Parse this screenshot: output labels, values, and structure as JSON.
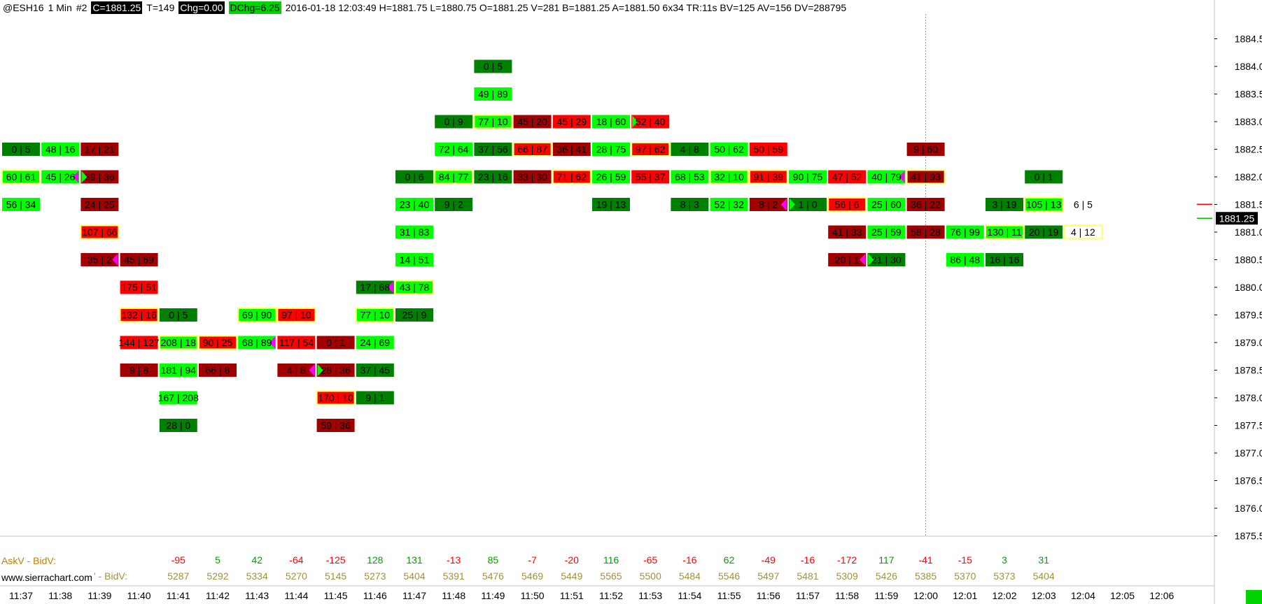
{
  "header": {
    "symbol": "@ESH16",
    "interval": "1 Min",
    "chart_num": "#2",
    "close": "C=1881.25",
    "trades": "T=149",
    "chg": "Chg=0.00",
    "dchg": "DChg=6.25",
    "info": "2016-01-18 12:03:49 H=1881.75 L=1880.75 O=1881.25 V=281 B=1881.25 A=1881.50 6x34 TR:11s BV=125 AV=156 DV=288795"
  },
  "footer": {
    "row1_label": "AskV - BidV:",
    "row2_label": "' - BidV:",
    "watermark": "www.sierrachart.com"
  },
  "colors": {
    "bright": "#00ff00",
    "green": "#008000",
    "red": "#ff0000",
    "maroon": "#a00000",
    "pos_text": "#00a000",
    "neg_text": "#ff0000",
    "sum_text": "#a09040",
    "yellow": "#ffff66",
    "magenta": "#ff00ff"
  },
  "chart_data": {
    "type": "table",
    "price_axis": [
      "1884.50",
      "1884.00",
      "1883.50",
      "1883.00",
      "1882.50",
      "1882.00",
      "1881.50",
      "1881.00",
      "1880.50",
      "1880.00",
      "1879.50",
      "1879.00",
      "1878.50",
      "1878.00",
      "1877.50",
      "1877.00",
      "1876.50",
      "1876.00",
      "1875.50"
    ],
    "last_price": "1881.25",
    "times": [
      "11:37",
      "11:38",
      "11:39",
      "11:40",
      "11:41",
      "11:42",
      "11:43",
      "11:44",
      "11:45",
      "11:46",
      "11:47",
      "11:48",
      "11:49",
      "11:50",
      "11:51",
      "11:52",
      "11:53",
      "11:54",
      "11:55",
      "11:56",
      "11:57",
      "11:58",
      "11:59",
      "12:00",
      "12:01",
      "12:02",
      "12:03",
      "12:04",
      "12:05",
      "12:06"
    ],
    "delta": [
      "-95",
      "5",
      "42",
      "-64",
      "-125",
      "128",
      "131",
      "-13",
      "85",
      "-7",
      "-20",
      "116",
      "-65",
      "-16",
      "62",
      "-49",
      "-16",
      "-172",
      "117",
      "-41",
      "-15",
      "3",
      "31"
    ],
    "bidv": [
      "5287",
      "5292",
      "5334",
      "5270",
      "5145",
      "5273",
      "5404",
      "5391",
      "5476",
      "5469",
      "5449",
      "5565",
      "5500",
      "5484",
      "5546",
      "5497",
      "5481",
      "5309",
      "5426",
      "5385",
      "5370",
      "5373",
      "5404"
    ],
    "bars": [
      {
        "time": "11:37",
        "cells": [
          {
            "price": 1882.5,
            "text": "0 | 5",
            "fill": "green"
          },
          {
            "price": 1882.0,
            "text": "60 | 61",
            "fill": "bright",
            "box": true
          },
          {
            "price": 1881.5,
            "text": "56 | 34",
            "fill": "bright"
          }
        ]
      },
      {
        "time": "11:38",
        "cells": [
          {
            "price": 1882.5,
            "text": "48 | 16",
            "fill": "bright"
          },
          {
            "price": 1882.0,
            "text": "45 | 26",
            "fill": "bright",
            "mark": "magenta"
          }
        ]
      },
      {
        "time": "11:39",
        "cells": [
          {
            "price": 1882.5,
            "text": "17 | 21",
            "fill": "maroon"
          },
          {
            "price": 1882.0,
            "text": "39 | 36",
            "fill": "maroon",
            "mark": "green-left"
          },
          {
            "price": 1881.5,
            "text": "24 | 25",
            "fill": "maroon"
          },
          {
            "price": 1881.0,
            "text": "107 | 66",
            "fill": "red",
            "box": true
          },
          {
            "price": 1880.5,
            "text": "35 | 2",
            "fill": "maroon",
            "mark": "magenta"
          }
        ]
      },
      {
        "time": "11:40",
        "cells": [
          {
            "price": 1880.5,
            "text": "45 | 69",
            "fill": "maroon"
          },
          {
            "price": 1880.0,
            "text": "175 | 51",
            "fill": "red"
          },
          {
            "price": 1879.5,
            "text": "132 | 16",
            "fill": "red",
            "box": true
          },
          {
            "price": 1879.0,
            "text": "144 | 127",
            "fill": "red"
          },
          {
            "price": 1878.5,
            "text": "9 | 8",
            "fill": "maroon"
          }
        ]
      },
      {
        "time": "11:41",
        "cells": [
          {
            "price": 1879.5,
            "text": "0 | 5",
            "fill": "green"
          },
          {
            "price": 1879.0,
            "text": "208 | 18",
            "fill": "bright",
            "box": true
          },
          {
            "price": 1878.5,
            "text": "181 | 94",
            "fill": "bright"
          },
          {
            "price": 1878.0,
            "text": "167 | 208",
            "fill": "bright"
          },
          {
            "price": 1877.5,
            "text": "28 | 0",
            "fill": "green"
          }
        ]
      },
      {
        "time": "11:42",
        "cells": [
          {
            "price": 1879.0,
            "text": "90 | 25",
            "fill": "red",
            "box": true
          },
          {
            "price": 1878.5,
            "text": "66 | 8",
            "fill": "maroon"
          }
        ]
      },
      {
        "time": "11:43",
        "cells": [
          {
            "price": 1879.5,
            "text": "69 | 90",
            "fill": "bright",
            "box": true
          },
          {
            "price": 1879.0,
            "text": "68 | 89",
            "fill": "bright",
            "mark": "magenta"
          }
        ]
      },
      {
        "time": "11:44",
        "cells": [
          {
            "price": 1879.5,
            "text": "97 | 10",
            "fill": "red",
            "box": true
          },
          {
            "price": 1879.0,
            "text": "117 | 54",
            "fill": "red"
          },
          {
            "price": 1878.5,
            "text": "4 | 8",
            "fill": "maroon",
            "mark": "magenta"
          }
        ]
      },
      {
        "time": "11:45",
        "cells": [
          {
            "price": 1879.0,
            "text": "0 | 1",
            "fill": "maroon"
          },
          {
            "price": 1878.5,
            "text": "28 | 36",
            "fill": "maroon",
            "mark": "green-left"
          },
          {
            "price": 1878.0,
            "text": "170 | 10",
            "fill": "red",
            "box": true
          },
          {
            "price": 1877.5,
            "text": "59 | 36",
            "fill": "maroon"
          }
        ]
      },
      {
        "time": "11:46",
        "cells": [
          {
            "price": 1880.0,
            "text": "17 | 68",
            "fill": "green",
            "mark": "magenta"
          },
          {
            "price": 1879.5,
            "text": "77 | 10",
            "fill": "bright",
            "box": true
          },
          {
            "price": 1879.0,
            "text": "24 | 69",
            "fill": "bright"
          },
          {
            "price": 1878.5,
            "text": "37 | 45",
            "fill": "green"
          },
          {
            "price": 1878.0,
            "text": "9 | 1",
            "fill": "green"
          }
        ]
      },
      {
        "time": "11:47",
        "cells": [
          {
            "price": 1882.0,
            "text": "0 | 6",
            "fill": "green"
          },
          {
            "price": 1881.5,
            "text": "23 | 40",
            "fill": "bright"
          },
          {
            "price": 1881.0,
            "text": "31 | 83",
            "fill": "bright"
          },
          {
            "price": 1880.5,
            "text": "14 | 51",
            "fill": "bright"
          },
          {
            "price": 1880.0,
            "text": "43 | 78",
            "fill": "bright",
            "box": true
          },
          {
            "price": 1879.5,
            "text": "25 | 9",
            "fill": "green"
          }
        ]
      },
      {
        "time": "11:48",
        "cells": [
          {
            "price": 1883.0,
            "text": "0 | 9",
            "fill": "green"
          },
          {
            "price": 1882.5,
            "text": "72 | 64",
            "fill": "bright"
          },
          {
            "price": 1882.0,
            "text": "84 | 77",
            "fill": "bright",
            "box": true
          },
          {
            "price": 1881.5,
            "text": "9 | 2",
            "fill": "green"
          }
        ]
      },
      {
        "time": "11:49",
        "cells": [
          {
            "price": 1884.0,
            "text": "0 | 5",
            "fill": "green"
          },
          {
            "price": 1883.5,
            "text": "49 | 89",
            "fill": "bright"
          },
          {
            "price": 1883.0,
            "text": "77 | 10",
            "fill": "bright",
            "box": true
          },
          {
            "price": 1882.5,
            "text": "37 | 56",
            "fill": "green"
          },
          {
            "price": 1882.0,
            "text": "23 | 16",
            "fill": "green"
          }
        ]
      },
      {
        "time": "11:50",
        "cells": [
          {
            "price": 1883.0,
            "text": "45 | 20",
            "fill": "maroon"
          },
          {
            "price": 1882.5,
            "text": "66 | 87",
            "fill": "red",
            "box": true
          },
          {
            "price": 1882.0,
            "text": "33 | 30",
            "fill": "maroon"
          }
        ]
      },
      {
        "time": "11:51",
        "cells": [
          {
            "price": 1883.0,
            "text": "45 | 29",
            "fill": "red"
          },
          {
            "price": 1882.5,
            "text": "36 | 41",
            "fill": "maroon"
          },
          {
            "price": 1882.0,
            "text": "71 | 62",
            "fill": "red",
            "box": true
          }
        ]
      },
      {
        "time": "11:52",
        "cells": [
          {
            "price": 1883.0,
            "text": "18 | 60",
            "fill": "bright"
          },
          {
            "price": 1882.5,
            "text": "28 | 75",
            "fill": "bright"
          },
          {
            "price": 1882.0,
            "text": "26 | 59",
            "fill": "bright",
            "mark": "green-left"
          },
          {
            "price": 1881.5,
            "text": "19 | 13",
            "fill": "green"
          }
        ]
      },
      {
        "time": "11:53",
        "cells": [
          {
            "price": 1883.0,
            "text": "52 | 40",
            "fill": "red",
            "mark": "green-left"
          },
          {
            "price": 1882.5,
            "text": "97 | 62",
            "fill": "red",
            "box": true
          },
          {
            "price": 1882.0,
            "text": "55 | 37",
            "fill": "red"
          }
        ]
      },
      {
        "time": "11:54",
        "cells": [
          {
            "price": 1882.5,
            "text": "4 | 8",
            "fill": "green"
          },
          {
            "price": 1882.0,
            "text": "68 | 53",
            "fill": "bright"
          },
          {
            "price": 1881.5,
            "text": "8 | 3",
            "fill": "green"
          }
        ]
      },
      {
        "time": "11:55",
        "cells": [
          {
            "price": 1882.5,
            "text": "50 | 62",
            "fill": "bright"
          },
          {
            "price": 1882.0,
            "text": "32 | 10",
            "fill": "bright",
            "box": true
          },
          {
            "price": 1881.5,
            "text": "52 | 32",
            "fill": "bright"
          }
        ]
      },
      {
        "time": "11:56",
        "cells": [
          {
            "price": 1882.5,
            "text": "50 | 59",
            "fill": "red"
          },
          {
            "price": 1882.0,
            "text": "91 | 39",
            "fill": "red",
            "box": true
          },
          {
            "price": 1881.5,
            "text": "8 | 2",
            "fill": "maroon",
            "mark": "magenta"
          }
        ]
      },
      {
        "time": "11:57",
        "cells": [
          {
            "price": 1882.0,
            "text": "90 | 75",
            "fill": "bright"
          },
          {
            "price": 1881.5,
            "text": "1 | 0",
            "fill": "green",
            "mark": "green-left"
          }
        ]
      },
      {
        "time": "11:58",
        "cells": [
          {
            "price": 1882.0,
            "text": "47 | 52",
            "fill": "red"
          },
          {
            "price": 1881.5,
            "text": "56 | 6",
            "fill": "red",
            "box": true
          },
          {
            "price": 1881.0,
            "text": "41 | 33",
            "fill": "maroon"
          },
          {
            "price": 1880.5,
            "text": "20 | 1",
            "fill": "maroon",
            "mark": "magenta"
          }
        ]
      },
      {
        "time": "11:59",
        "cells": [
          {
            "price": 1882.0,
            "text": "40 | 79",
            "fill": "bright",
            "mark": "magenta"
          },
          {
            "price": 1881.5,
            "text": "25 | 60",
            "fill": "bright"
          },
          {
            "price": 1881.0,
            "text": "25 | 59",
            "fill": "bright"
          },
          {
            "price": 1880.5,
            "text": "21 | 30",
            "fill": "green",
            "mark": "green-left"
          }
        ]
      },
      {
        "time": "12:00",
        "cells": [
          {
            "price": 1882.5,
            "text": "9 | 60",
            "fill": "maroon"
          },
          {
            "price": 1882.0,
            "text": "41 | 93",
            "fill": "maroon",
            "box": true
          },
          {
            "price": 1881.5,
            "text": "36 | 22",
            "fill": "maroon"
          },
          {
            "price": 1881.0,
            "text": "58 | 28",
            "fill": "maroon"
          }
        ]
      },
      {
        "time": "12:01",
        "cells": [
          {
            "price": 1881.0,
            "text": "76 | 99",
            "fill": "bright"
          },
          {
            "price": 1880.5,
            "text": "86 | 48",
            "fill": "bright"
          }
        ]
      },
      {
        "time": "12:02",
        "cells": [
          {
            "price": 1881.5,
            "text": "3 | 19",
            "fill": "green"
          },
          {
            "price": 1881.0,
            "text": "130 | 11",
            "fill": "bright",
            "box": true
          },
          {
            "price": 1880.5,
            "text": "16 | 16",
            "fill": "green"
          }
        ]
      },
      {
        "time": "12:03",
        "cells": [
          {
            "price": 1882.0,
            "text": "0 | 1",
            "fill": "green"
          },
          {
            "price": 1881.5,
            "text": "105 | 13",
            "fill": "bright",
            "box": true
          },
          {
            "price": 1881.0,
            "text": "20 | 19",
            "fill": "green"
          }
        ]
      },
      {
        "time": "12:04",
        "cells": [
          {
            "price": 1881.5,
            "text": "6 | 5",
            "fill": "none"
          },
          {
            "price": 1881.0,
            "text": "4 | 12",
            "fill": "none",
            "box": true
          }
        ]
      }
    ]
  }
}
